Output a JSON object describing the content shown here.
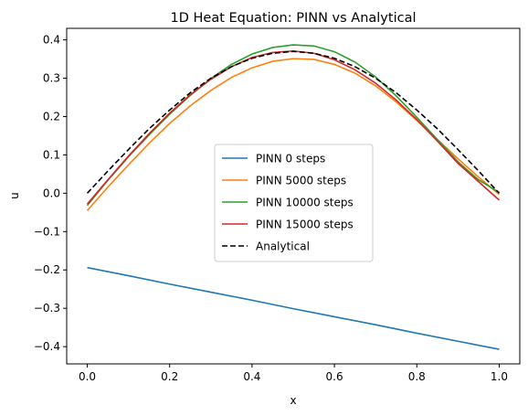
{
  "chart_data": {
    "type": "line",
    "title": "1D Heat Equation: PINN vs Analytical",
    "xlabel": "x",
    "ylabel": "u",
    "xlim": [
      -0.05,
      1.05
    ],
    "ylim": [
      -0.445,
      0.43
    ],
    "x_ticks": [
      "0.0",
      "0.2",
      "0.4",
      "0.6",
      "0.8",
      "1.0"
    ],
    "y_ticks": [
      "−0.4",
      "−0.3",
      "−0.2",
      "−0.1",
      "0.0",
      "0.1",
      "0.2",
      "0.3",
      "0.4"
    ],
    "grid": false,
    "legend_position": "center",
    "series": [
      {
        "name": "PINN 0 steps",
        "color": "#1f77b4",
        "style": "solid",
        "x": [
          0.0,
          0.1,
          0.2,
          0.3,
          0.4,
          0.5,
          0.6,
          0.7,
          0.8,
          0.9,
          1.0
        ],
        "y": [
          -0.194,
          -0.215,
          -0.237,
          -0.258,
          -0.279,
          -0.301,
          -0.322,
          -0.343,
          -0.365,
          -0.386,
          -0.407
        ]
      },
      {
        "name": "PINN 5000 steps",
        "color": "#ff7f0e",
        "style": "solid",
        "x": [
          0.0,
          0.05,
          0.1,
          0.15,
          0.2,
          0.25,
          0.3,
          0.35,
          0.4,
          0.45,
          0.5,
          0.55,
          0.6,
          0.65,
          0.7,
          0.75,
          0.8,
          0.85,
          0.9,
          0.95,
          1.0
        ],
        "y": [
          -0.045,
          0.016,
          0.074,
          0.13,
          0.182,
          0.228,
          0.268,
          0.302,
          0.327,
          0.344,
          0.351,
          0.349,
          0.336,
          0.313,
          0.28,
          0.238,
          0.19,
          0.14,
          0.09,
          0.042,
          -0.003
        ]
      },
      {
        "name": "PINN 10000 steps",
        "color": "#2ca02c",
        "style": "solid",
        "x": [
          0.0,
          0.05,
          0.1,
          0.15,
          0.2,
          0.25,
          0.3,
          0.35,
          0.4,
          0.45,
          0.5,
          0.55,
          0.6,
          0.65,
          0.7,
          0.75,
          0.8,
          0.85,
          0.9,
          0.95,
          1.0
        ],
        "y": [
          -0.032,
          0.034,
          0.095,
          0.152,
          0.206,
          0.255,
          0.299,
          0.336,
          0.363,
          0.38,
          0.387,
          0.384,
          0.369,
          0.342,
          0.303,
          0.254,
          0.198,
          0.14,
          0.082,
          0.035,
          0.002
        ]
      },
      {
        "name": "PINN 15000 steps",
        "color": "#d62728",
        "style": "solid",
        "x": [
          0.0,
          0.05,
          0.1,
          0.15,
          0.2,
          0.25,
          0.3,
          0.35,
          0.4,
          0.45,
          0.5,
          0.55,
          0.6,
          0.65,
          0.7,
          0.75,
          0.8,
          0.85,
          0.9,
          0.95,
          1.0
        ],
        "y": [
          -0.028,
          0.035,
          0.097,
          0.155,
          0.209,
          0.257,
          0.297,
          0.33,
          0.354,
          0.367,
          0.371,
          0.365,
          0.348,
          0.322,
          0.287,
          0.243,
          0.192,
          0.136,
          0.078,
          0.03,
          -0.018
        ]
      },
      {
        "name": "Analytical",
        "color": "#000000",
        "style": "dashed",
        "x": [
          0.0,
          0.05,
          0.1,
          0.15,
          0.2,
          0.25,
          0.3,
          0.35,
          0.4,
          0.45,
          0.5,
          0.55,
          0.6,
          0.65,
          0.7,
          0.75,
          0.8,
          0.85,
          0.9,
          0.95,
          1.0
        ],
        "y": [
          0.0,
          0.058,
          0.114,
          0.168,
          0.217,
          0.262,
          0.3,
          0.33,
          0.352,
          0.365,
          0.37,
          0.365,
          0.352,
          0.33,
          0.3,
          0.262,
          0.217,
          0.168,
          0.114,
          0.058,
          0.0
        ]
      }
    ]
  }
}
